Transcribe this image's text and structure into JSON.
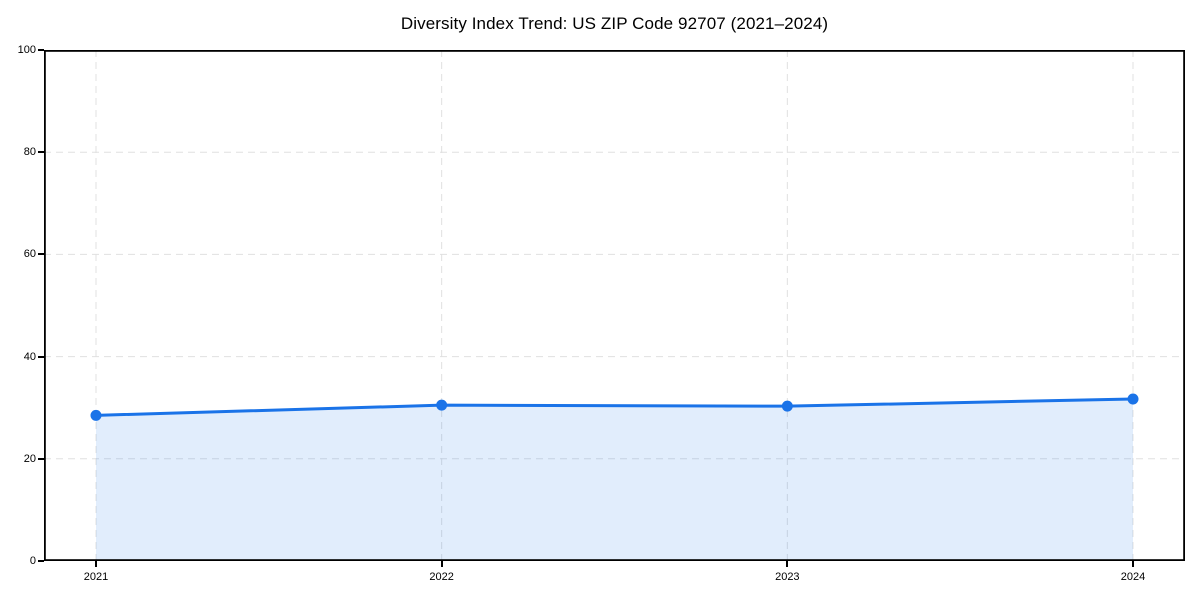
{
  "chart_data": {
    "type": "line",
    "title": "Diversity Index Trend: US ZIP Code 92707 (2021–2024)",
    "series_name": "Diversity Index",
    "x": [
      2021,
      2022,
      2023,
      2024
    ],
    "values": [
      28.5,
      30.5,
      30.3,
      31.7
    ],
    "xticks": [
      "2021",
      "2022",
      "2023",
      "2024"
    ],
    "yticks": [
      0,
      20,
      40,
      60,
      80,
      100
    ],
    "xlabel": "",
    "ylabel": "",
    "ylim": [
      0,
      100
    ],
    "grid": true,
    "grid_style": "dashed",
    "area_fill": true,
    "markers": true,
    "legend": "none",
    "colors": {
      "line": "#1a73e8",
      "marker": "#1a73e8",
      "area": "rgba(26,115,232,0.13)",
      "grid": "#e0e0e0",
      "spine": "#000000",
      "tick_label": "#000000",
      "title": "#000000",
      "background": "#ffffff"
    }
  }
}
